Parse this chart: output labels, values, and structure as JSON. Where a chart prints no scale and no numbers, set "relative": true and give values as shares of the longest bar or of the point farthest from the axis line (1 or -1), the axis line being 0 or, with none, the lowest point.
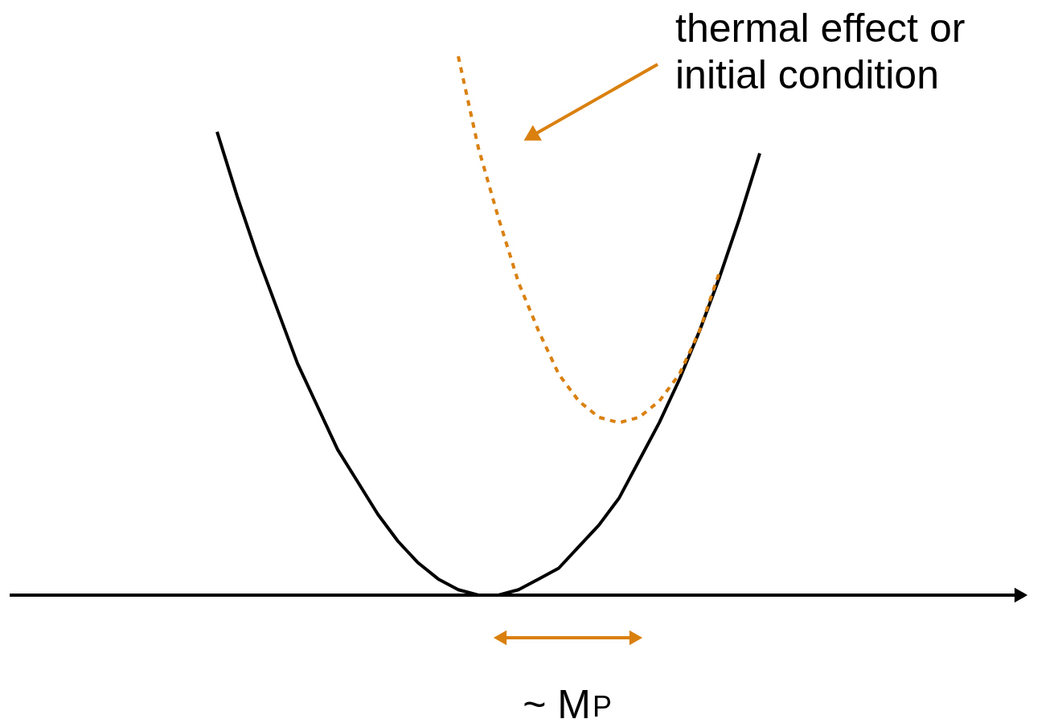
{
  "chart_data": {
    "type": "line",
    "relative": true,
    "marker": "none",
    "categories": [
      null,
      null,
      null,
      null,
      null,
      null,
      null,
      null,
      null,
      null,
      null,
      null,
      null,
      null,
      null,
      null,
      null,
      null,
      null,
      null,
      null,
      null,
      null,
      null,
      null,
      null,
      null,
      null
    ],
    "series": [
      {
        "color": "#000000",
        "line_style": "solid",
        "values": [
          0.86,
          0.74,
          0.63,
          0.53,
          0.43,
          0.35,
          0.27,
          0.21,
          0.15,
          0.1,
          0.06,
          0.03,
          0.01,
          0.0,
          0.0,
          0.01,
          0.03,
          0.05,
          0.09,
          0.13,
          0.18,
          0.25,
          0.32,
          0.4,
          0.49,
          0.59,
          0.7,
          0.82
        ]
      },
      {
        "color": "#d9800f",
        "line_style": "dotted",
        "values": [
          null,
          null,
          null,
          null,
          null,
          null,
          null,
          null,
          null,
          null,
          null,
          null,
          1.0,
          0.83,
          0.7,
          0.58,
          0.49,
          0.41,
          0.36,
          0.33,
          0.32,
          0.33,
          0.36,
          0.41,
          0.49,
          0.6,
          null,
          null
        ]
      }
    ],
    "annotations": [
      "thermal effect or\ninitial condition",
      "~ M$_{P}$"
    ]
  }
}
